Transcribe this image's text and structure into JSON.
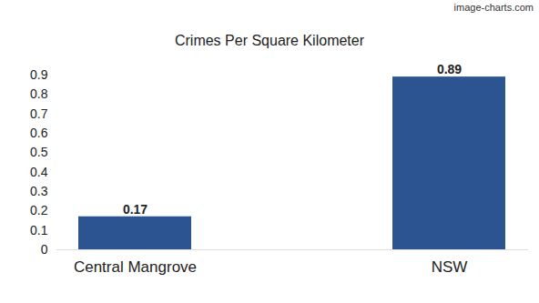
{
  "chart_data": {
    "type": "bar",
    "title": "Crimes Per Square Kilometer",
    "annotations": [
      "image-charts.com"
    ],
    "categories": [
      "Central Mangrove",
      "NSW"
    ],
    "values": [
      0.17,
      0.89
    ],
    "color": "#2c5491",
    "ylim": [
      0,
      0.9
    ],
    "yticks": [
      0,
      0.1,
      0.2,
      0.3,
      0.4,
      0.5,
      0.6,
      0.7,
      0.8,
      0.9
    ],
    "grid": false,
    "data_labels": true
  }
}
